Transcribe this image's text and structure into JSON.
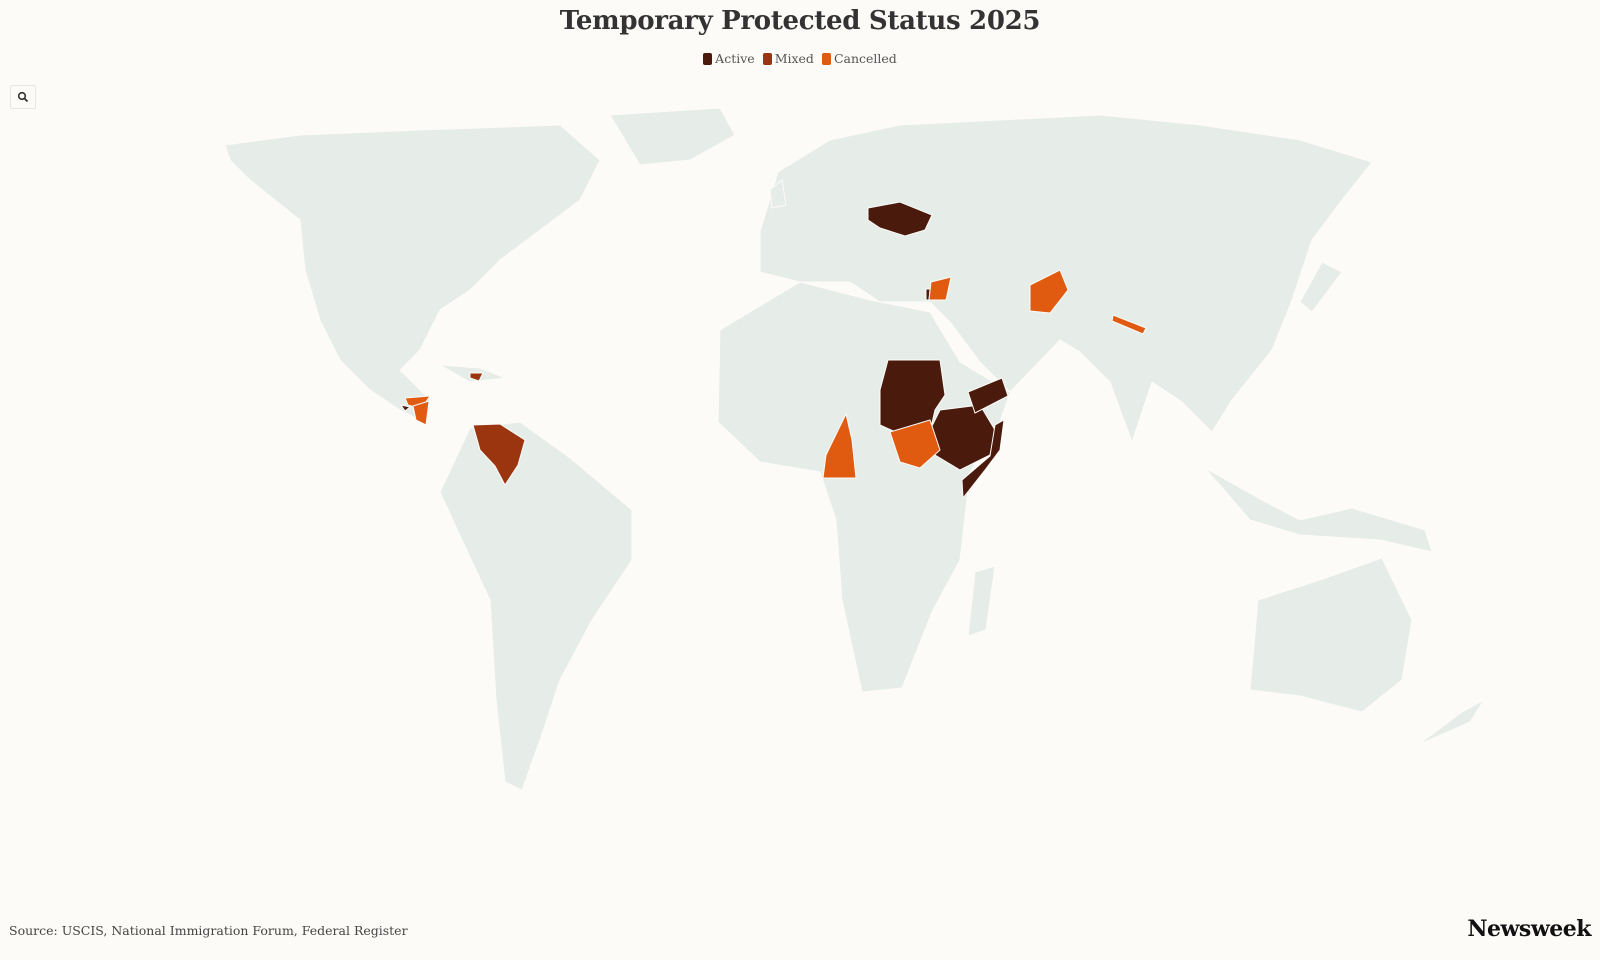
{
  "title": "Temporary Protected Status 2025",
  "legend": [
    {
      "label": "Active",
      "color": "#4a1a0c"
    },
    {
      "label": "Mixed",
      "color": "#9a3510"
    },
    {
      "label": "Cancelled",
      "color": "#e05a10"
    }
  ],
  "zoom_button": {
    "icon": "search-icon"
  },
  "map": {
    "land_color": "#e6ece8",
    "background": "#fcfbf8",
    "regions": [
      {
        "id": "ukraine",
        "status": "Active"
      },
      {
        "id": "sudan",
        "status": "Active"
      },
      {
        "id": "ethiopia",
        "status": "Active"
      },
      {
        "id": "somalia",
        "status": "Active"
      },
      {
        "id": "yemen",
        "status": "Active"
      },
      {
        "id": "el-salvador",
        "status": "Active"
      },
      {
        "id": "lebanon",
        "status": "Active"
      },
      {
        "id": "venezuela",
        "status": "Mixed"
      },
      {
        "id": "haiti",
        "status": "Mixed"
      },
      {
        "id": "honduras",
        "status": "Cancelled"
      },
      {
        "id": "nicaragua",
        "status": "Cancelled"
      },
      {
        "id": "syria",
        "status": "Cancelled"
      },
      {
        "id": "afghanistan",
        "status": "Cancelled"
      },
      {
        "id": "nepal",
        "status": "Cancelled"
      },
      {
        "id": "cameroon",
        "status": "Cancelled"
      },
      {
        "id": "south-sudan",
        "status": "Cancelled"
      }
    ]
  },
  "source": "Source: USCIS, National Immigration Forum, Federal Register",
  "brand": "Newsweek"
}
